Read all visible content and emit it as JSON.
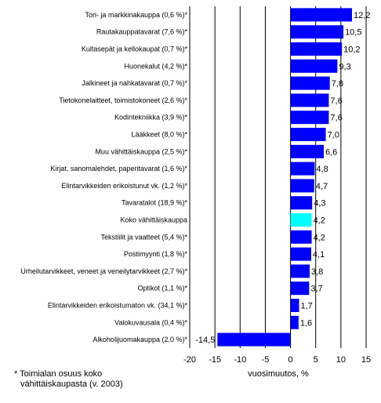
{
  "chart_data": {
    "type": "bar",
    "orientation": "horizontal",
    "categories": [
      "Tori- ja markkinakauppa (0,6 %)*",
      "Rautakauppatavarat (7,6 %)*",
      "Kultasepät ja kellokaupat (0,7 %)*",
      "Huonekalut (4,2 %)*",
      "Jalkineet ja nahkatavarat (0,7 %)*",
      "Tietokonelaitteet, toimistokoneet (2,6 %)*",
      "Kodintekniikka (3,9 %)*",
      "Lääkkeet (8,0 %)*",
      "Muu vähittäiskauppa (2,5 %)*",
      "Kirjat, sanomalehdet, paperitavarat (1,6 %)*",
      "Elintarvikkeiden erikoistunut vk. (1,2 %)*",
      "Tavaratalot (18,9 %)*",
      "Koko vähittäiskauppa",
      "Tekstiilit ja vaatteet (5,4 %)*",
      "Postimyynti (1,8 %)*",
      "Urheilutarvikkeet, veneet ja veneilytarvikkeet (2,7 %)*",
      "Optikot (1,1 %)*",
      "Elintarvikkeiden erikoistumaton vk. (34,1 %)*",
      "Valokuvausala (0,4 %)*",
      "Alkoholijuomakauppa (2,0 %)*"
    ],
    "values": [
      12.2,
      10.5,
      10.2,
      9.3,
      7.8,
      7.6,
      7.6,
      7.0,
      6.6,
      4.8,
      4.7,
      4.3,
      4.2,
      4.2,
      4.1,
      3.8,
      3.7,
      1.7,
      1.6,
      -14.5
    ],
    "value_labels": [
      "12,2",
      "10,5",
      "10,2",
      "9,3",
      "7,8",
      "7,6",
      "7,6",
      "7,0",
      "6,6",
      "4,8",
      "4,7",
      "4,3",
      "4,2",
      "4,2",
      "4,1",
      "3,8",
      "3,7",
      "1,7",
      "1,6",
      "-14,5"
    ],
    "highlight_category": "Koko vähittäiskauppa",
    "xlim": [
      -20,
      15
    ],
    "xticks": [
      -20,
      -15,
      -10,
      -5,
      0,
      5,
      10,
      15
    ],
    "xlabel": "vuosimuutos, %",
    "grid": "vertical",
    "colors": {
      "bar": "#0000ff",
      "highlight": "#00ffff",
      "grid": "#000000"
    }
  },
  "footnote": {
    "line1": "* Toimialan osuus koko",
    "line2": "vähittäiskaupasta (v. 2003)"
  }
}
